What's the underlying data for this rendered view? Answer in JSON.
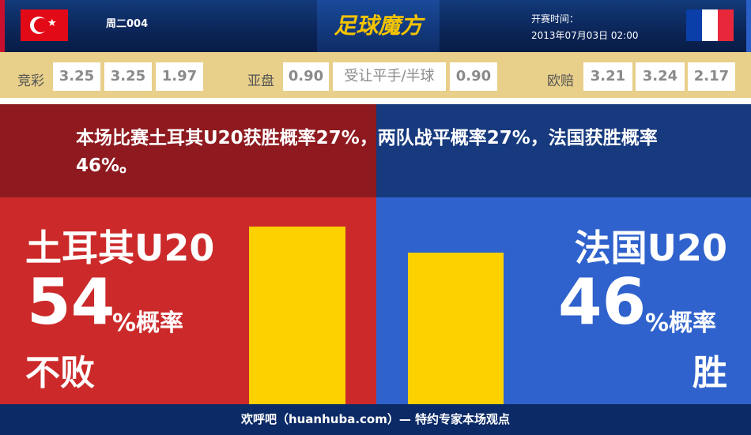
{
  "header": {
    "match_no": "周二004",
    "logo": "足球魔方",
    "time_label": "开赛时间：",
    "time_value": "2013年07月03日 02:00",
    "home_flag": "turkey-flag",
    "away_flag": "france-flag"
  },
  "odds": {
    "jingcai_label": "竞彩",
    "jingcai": [
      "3.25",
      "3.25",
      "1.97"
    ],
    "yapan_label": "亚盘",
    "yapan": [
      "0.90",
      "受让平手/半球",
      "0.90"
    ],
    "ouzhou_label": "欧赔",
    "ouzhou": [
      "3.21",
      "3.24",
      "2.17"
    ]
  },
  "summary": "本场比赛土耳其U20获胜概率27%，两队战平概率27%，法国获胜概率46%。",
  "home": {
    "team": "土耳其U20",
    "pct": "54",
    "pct_suffix": "%概率",
    "outcome": "不败",
    "bar_value": 54,
    "color": "#cc2a2a"
  },
  "away": {
    "team": "法国U20",
    "pct": "46",
    "pct_suffix": "%概率",
    "outcome": "胜",
    "bar_value": 46,
    "color": "#2f62cc"
  },
  "bar_color": "#fdd000",
  "footer": "欢呼吧（huanhuba.com）— 特约专家本场观点"
}
